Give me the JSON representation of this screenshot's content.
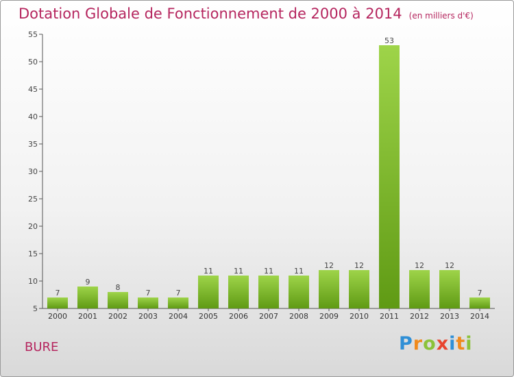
{
  "title": "Dotation Globale de Fonctionnement de 2000 à 2014",
  "unit_label": "(en milliers d'€)",
  "city": "BURE",
  "logo": {
    "letters": [
      "P",
      "r",
      "o",
      "x",
      "i",
      "t",
      "i"
    ],
    "colors": [
      "#2f8fd6",
      "#f08a1c",
      "#8bc23a",
      "#e8442e",
      "#2f8fd6",
      "#f08a1c",
      "#8bc23a"
    ]
  },
  "colors": {
    "title": "#b5255e",
    "bar_light": "#9ed449",
    "bar_dark": "#5f9a14",
    "axis": "#555555"
  },
  "chart_data": {
    "type": "bar",
    "title": "Dotation Globale de Fonctionnement de 2000 à 2014",
    "ylabel": "(en milliers d'€)",
    "xlabel": "",
    "categories": [
      "2000",
      "2001",
      "2002",
      "2003",
      "2004",
      "2005",
      "2006",
      "2007",
      "2008",
      "2009",
      "2010",
      "2011",
      "2012",
      "2013",
      "2014"
    ],
    "values": [
      7,
      9,
      8,
      7,
      7,
      11,
      11,
      11,
      11,
      12,
      12,
      53,
      12,
      12,
      7
    ],
    "ylim": [
      5,
      55
    ],
    "yticks": [
      5,
      10,
      15,
      20,
      25,
      30,
      35,
      40,
      45,
      50,
      55
    ],
    "grid": false,
    "legend": "none"
  }
}
